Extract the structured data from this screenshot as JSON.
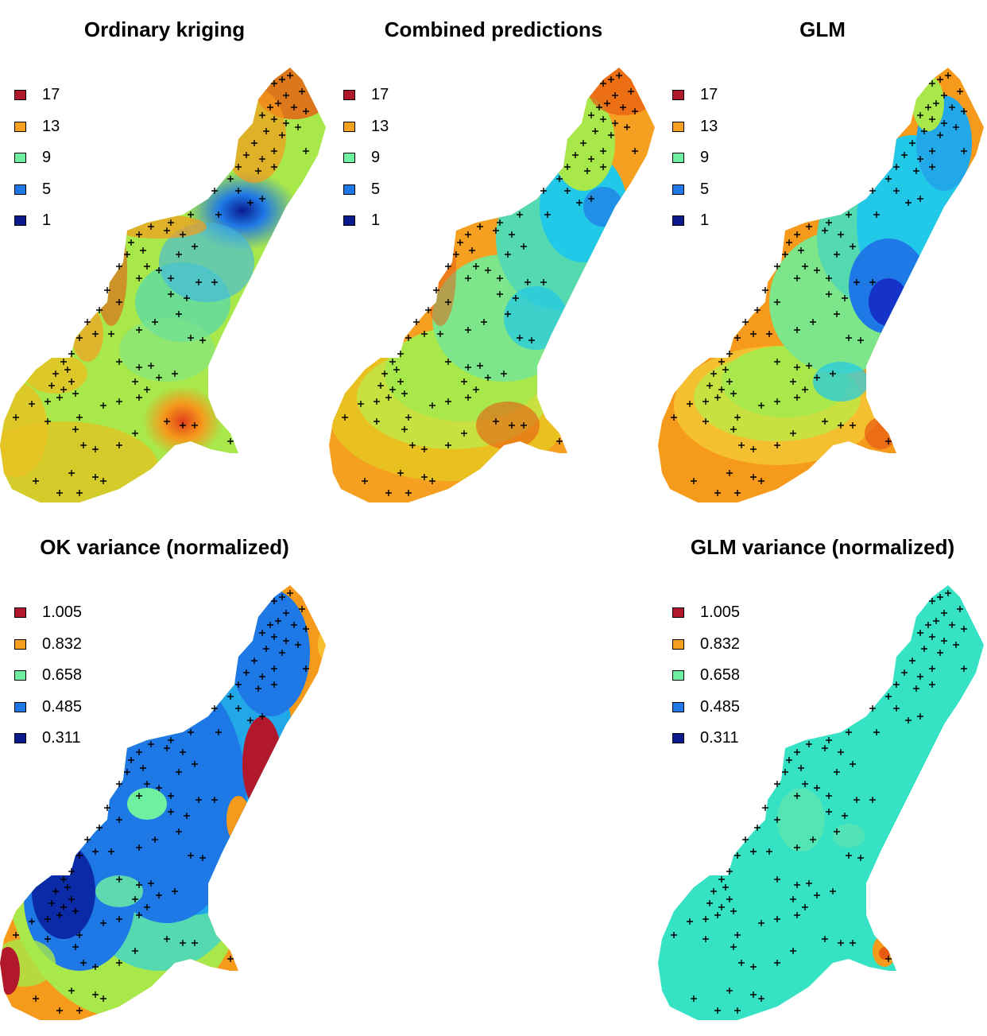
{
  "colors": {
    "red": "#b2182b",
    "orange": "#f59a1b",
    "green": "#6ef0a0",
    "blue": "#1e78e6",
    "navy": "#0a1a8c"
  },
  "chart_data": [
    {
      "type": "heatmap",
      "title": "Ordinary kriging",
      "legend": [
        {
          "label": "17",
          "color": "#b2182b"
        },
        {
          "label": "13",
          "color": "#f5a020"
        },
        {
          "label": "9",
          "color": "#6ef0a0"
        },
        {
          "label": "5",
          "color": "#1e78e6"
        },
        {
          "label": "1",
          "color": "#0a1a8c"
        }
      ],
      "legend_position": "top-left",
      "overlay": "sample points (+)"
    },
    {
      "type": "heatmap",
      "title": "Combined predictions",
      "legend": [
        {
          "label": "17",
          "color": "#b2182b"
        },
        {
          "label": "13",
          "color": "#f5a020"
        },
        {
          "label": "9",
          "color": "#6ef0a0"
        },
        {
          "label": "5",
          "color": "#1e78e6"
        },
        {
          "label": "1",
          "color": "#0a1a8c"
        }
      ],
      "legend_position": "top-left",
      "overlay": "sample points (+)"
    },
    {
      "type": "heatmap",
      "title": "GLM",
      "legend": [
        {
          "label": "17",
          "color": "#b2182b"
        },
        {
          "label": "13",
          "color": "#f5a020"
        },
        {
          "label": "9",
          "color": "#6ef0a0"
        },
        {
          "label": "5",
          "color": "#1e78e6"
        },
        {
          "label": "1",
          "color": "#0a1a8c"
        }
      ],
      "legend_position": "top-left",
      "overlay": "sample points (+)"
    },
    {
      "type": "heatmap",
      "title": "OK variance (normalized)",
      "legend": [
        {
          "label": "1.005",
          "color": "#b2182b"
        },
        {
          "label": "0.832",
          "color": "#f5a020"
        },
        {
          "label": "0.658",
          "color": "#6ef0a0"
        },
        {
          "label": "0.485",
          "color": "#1e78e6"
        },
        {
          "label": "0.311",
          "color": "#0a1a8c"
        }
      ],
      "legend_position": "top-left",
      "overlay": "sample points (+)"
    },
    {
      "type": "heatmap",
      "title": "GLM variance (normalized)",
      "legend": [
        {
          "label": "1.005",
          "color": "#b2182b"
        },
        {
          "label": "0.832",
          "color": "#f5a020"
        },
        {
          "label": "0.658",
          "color": "#6ef0a0"
        },
        {
          "label": "0.485",
          "color": "#1e78e6"
        },
        {
          "label": "0.311",
          "color": "#0a1a8c"
        }
      ],
      "legend_position": "top-left",
      "overlay": "sample points (+)"
    }
  ]
}
